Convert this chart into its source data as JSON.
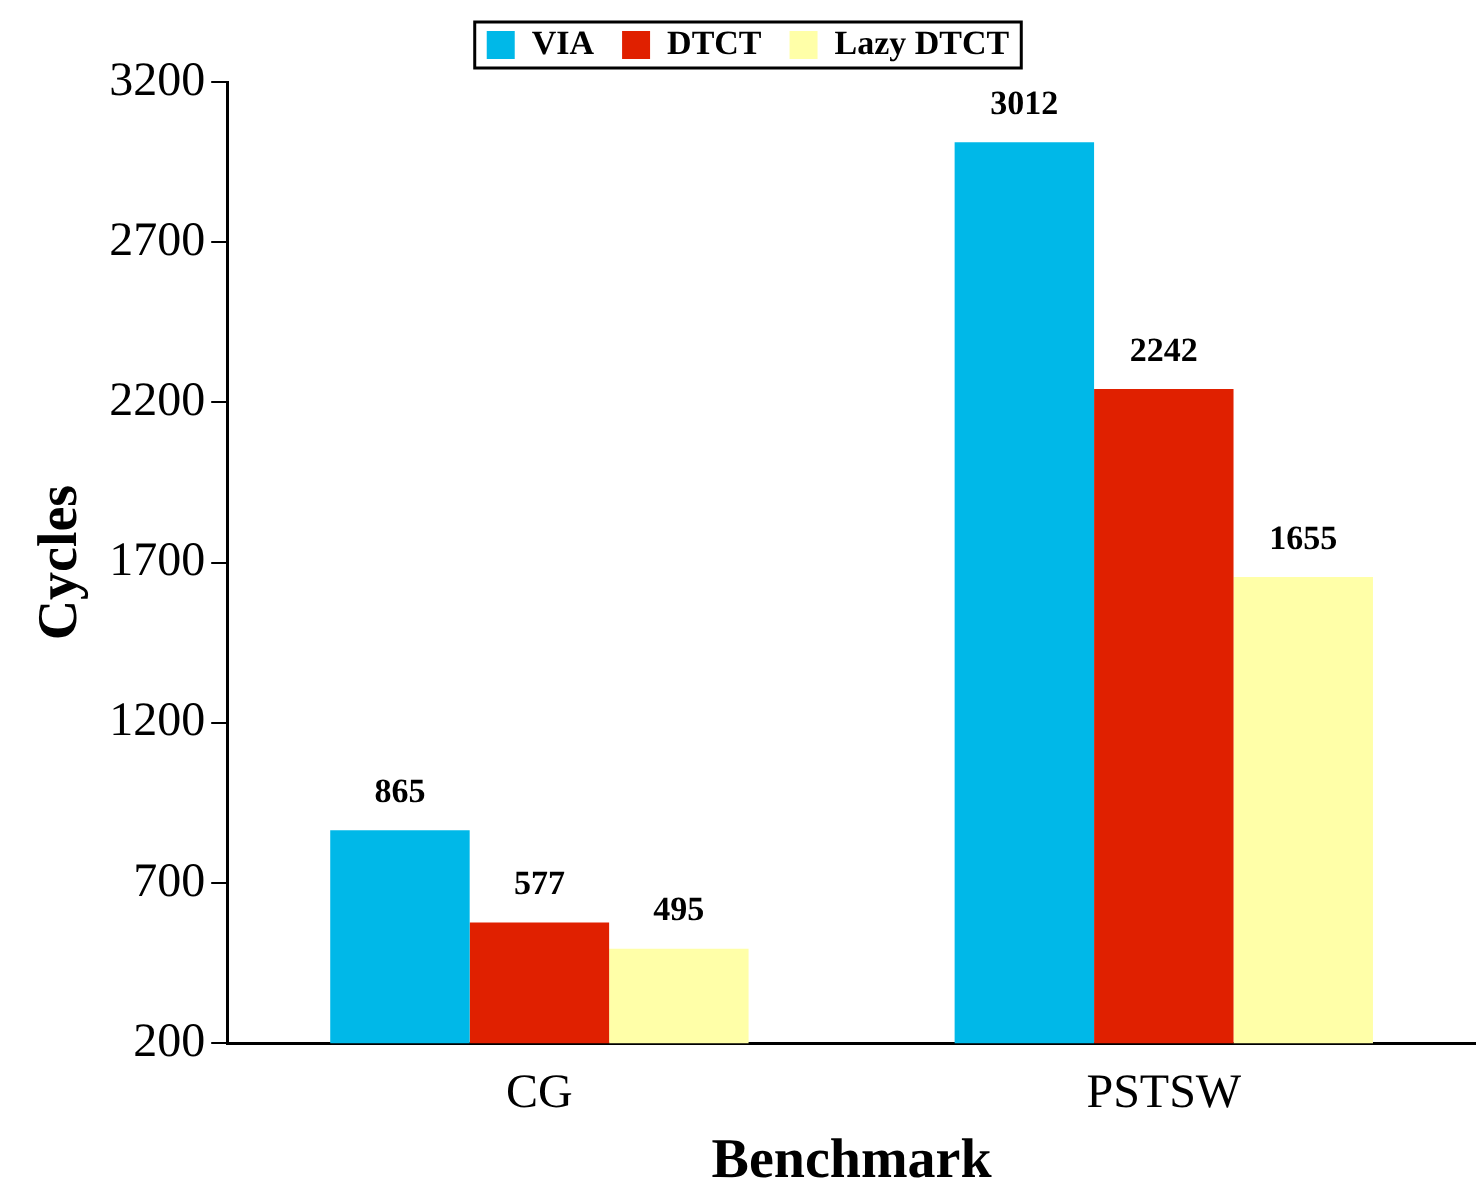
{
  "chart_data": {
    "type": "bar",
    "xlabel": "Benchmark",
    "ylabel": "Cycles",
    "categories": [
      "CG",
      "PSTSW"
    ],
    "series": [
      {
        "name": "VIA",
        "color": "#00b8e8",
        "values": [
          865,
          3012
        ]
      },
      {
        "name": "DTCT",
        "color": "#e02000",
        "values": [
          577,
          2242
        ]
      },
      {
        "name": "Lazy DTCT",
        "color": "#ffffa8",
        "values": [
          495,
          1655
        ]
      }
    ],
    "ylim": [
      200,
      3200
    ],
    "yticks": [
      200,
      700,
      1200,
      1700,
      2200,
      2700,
      3200
    ],
    "grid": false,
    "legend": "top",
    "data_labels": true
  }
}
